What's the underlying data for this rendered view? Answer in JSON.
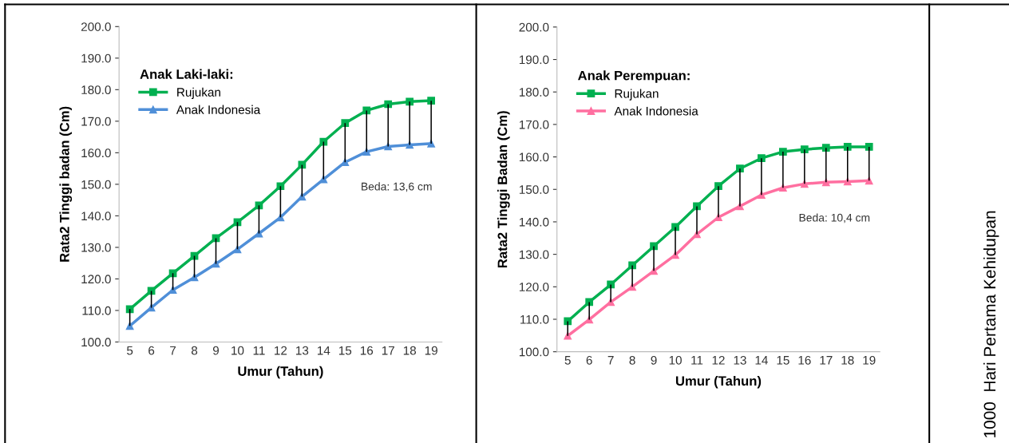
{
  "chart_data": [
    {
      "type": "line",
      "xlabel": "Umur (Tahun)",
      "ylabel": "Rata2 Tinggi badan (Cm)",
      "legend_title": "Anak Laki-laki:",
      "legend": "top left",
      "grid": false,
      "categories": [
        "5",
        "6",
        "7",
        "8",
        "9",
        "10",
        "11",
        "12",
        "13",
        "14",
        "15",
        "16",
        "17",
        "18",
        "19"
      ],
      "ylim": [
        100,
        200
      ],
      "yticks": [
        {
          "value": 100,
          "label": "100.0"
        },
        {
          "value": 110,
          "label": "110.0"
        },
        {
          "value": 120,
          "label": "120.0"
        },
        {
          "value": 130,
          "label": "130.0"
        },
        {
          "value": 140,
          "label": "140.0"
        },
        {
          "value": 150,
          "label": "150.0"
        },
        {
          "value": 160,
          "label": "160.0"
        },
        {
          "value": 170,
          "label": "170.0"
        },
        {
          "value": 180,
          "label": "180.0"
        },
        {
          "value": 190,
          "label": "190.0"
        },
        {
          "value": 200,
          "label": "200.0"
        }
      ],
      "series": [
        {
          "name": "Rujukan",
          "color": "#00b050",
          "marker": "square",
          "values": [
            110.4,
            116.2,
            121.8,
            127.3,
            132.9,
            138.0,
            143.3,
            149.4,
            156.2,
            163.5,
            169.4,
            173.4,
            175.4,
            176.2,
            176.5
          ],
          "errors": [
            [
              105.1,
              110.4
            ],
            [
              110.9,
              116.2
            ],
            [
              116.5,
              121.8
            ],
            [
              120.5,
              127.3
            ],
            [
              124.8,
              132.9
            ],
            [
              129.4,
              138.0
            ],
            [
              134.4,
              143.3
            ],
            [
              139.5,
              149.4
            ],
            [
              146.1,
              156.2
            ],
            [
              151.6,
              163.5
            ],
            [
              157.0,
              169.4
            ],
            [
              160.3,
              173.4
            ],
            [
              162.0,
              175.4
            ],
            [
              162.5,
              176.2
            ],
            [
              162.9,
              176.5
            ]
          ]
        },
        {
          "name": "Anak Indonesia",
          "color": "#4f8fd8",
          "marker": "triangle",
          "values": [
            105.1,
            110.9,
            116.5,
            120.5,
            124.8,
            129.4,
            134.4,
            139.5,
            146.1,
            151.6,
            157.0,
            160.3,
            162.0,
            162.5,
            162.9
          ]
        }
      ],
      "annotations": [
        "Beda: 13,6 cm"
      ]
    },
    {
      "type": "line",
      "xlabel": "Umur (Tahun)",
      "ylabel": "Rata2 Tinggi Badan (Cm)",
      "legend_title": "Anak Perempuan:",
      "legend": "top left",
      "grid": false,
      "categories": [
        "5",
        "6",
        "7",
        "8",
        "9",
        "10",
        "11",
        "12",
        "13",
        "14",
        "15",
        "16",
        "17",
        "18",
        "19"
      ],
      "ylim": [
        100,
        200
      ],
      "yticks": [
        {
          "value": 100,
          "label": "100.0"
        },
        {
          "value": 110,
          "label": "110.0"
        },
        {
          "value": 120,
          "label": "120.0"
        },
        {
          "value": 130,
          "label": "130.0"
        },
        {
          "value": 140,
          "label": "140.0"
        },
        {
          "value": 150,
          "label": "150.0"
        },
        {
          "value": 160,
          "label": "160.0"
        },
        {
          "value": 170,
          "label": "170.0"
        },
        {
          "value": 180,
          "label": "180.0"
        },
        {
          "value": 190,
          "label": "190.0"
        },
        {
          "value": 200,
          "label": "200.0"
        }
      ],
      "series": [
        {
          "name": "Rujukan",
          "color": "#00b050",
          "marker": "square",
          "values": [
            109.4,
            115.3,
            120.7,
            126.6,
            132.5,
            138.4,
            144.8,
            151.0,
            156.4,
            159.6,
            161.6,
            162.3,
            162.8,
            163.1,
            163.1
          ],
          "errors": [
            [
              104.9,
              109.4
            ],
            [
              109.9,
              115.3
            ],
            [
              115.3,
              120.7
            ],
            [
              120.0,
              126.6
            ],
            [
              124.9,
              132.5
            ],
            [
              129.8,
              138.4
            ],
            [
              136.2,
              144.8
            ],
            [
              141.4,
              151.0
            ],
            [
              144.8,
              156.4
            ],
            [
              148.3,
              159.6
            ],
            [
              150.5,
              161.6
            ],
            [
              151.7,
              162.3
            ],
            [
              152.2,
              162.8
            ],
            [
              152.4,
              163.1
            ],
            [
              152.7,
              163.1
            ]
          ]
        },
        {
          "name": "Anak Indonesia",
          "color": "#ff6fa0",
          "marker": "triangle",
          "values": [
            104.9,
            109.9,
            115.3,
            120.0,
            124.9,
            129.8,
            136.2,
            141.4,
            144.8,
            148.3,
            150.5,
            151.7,
            152.2,
            152.4,
            152.7
          ]
        }
      ],
      "annotations": [
        "Beda: 10,4 cm",
        "1000  Hari Pertama Kehidupan"
      ]
    }
  ]
}
